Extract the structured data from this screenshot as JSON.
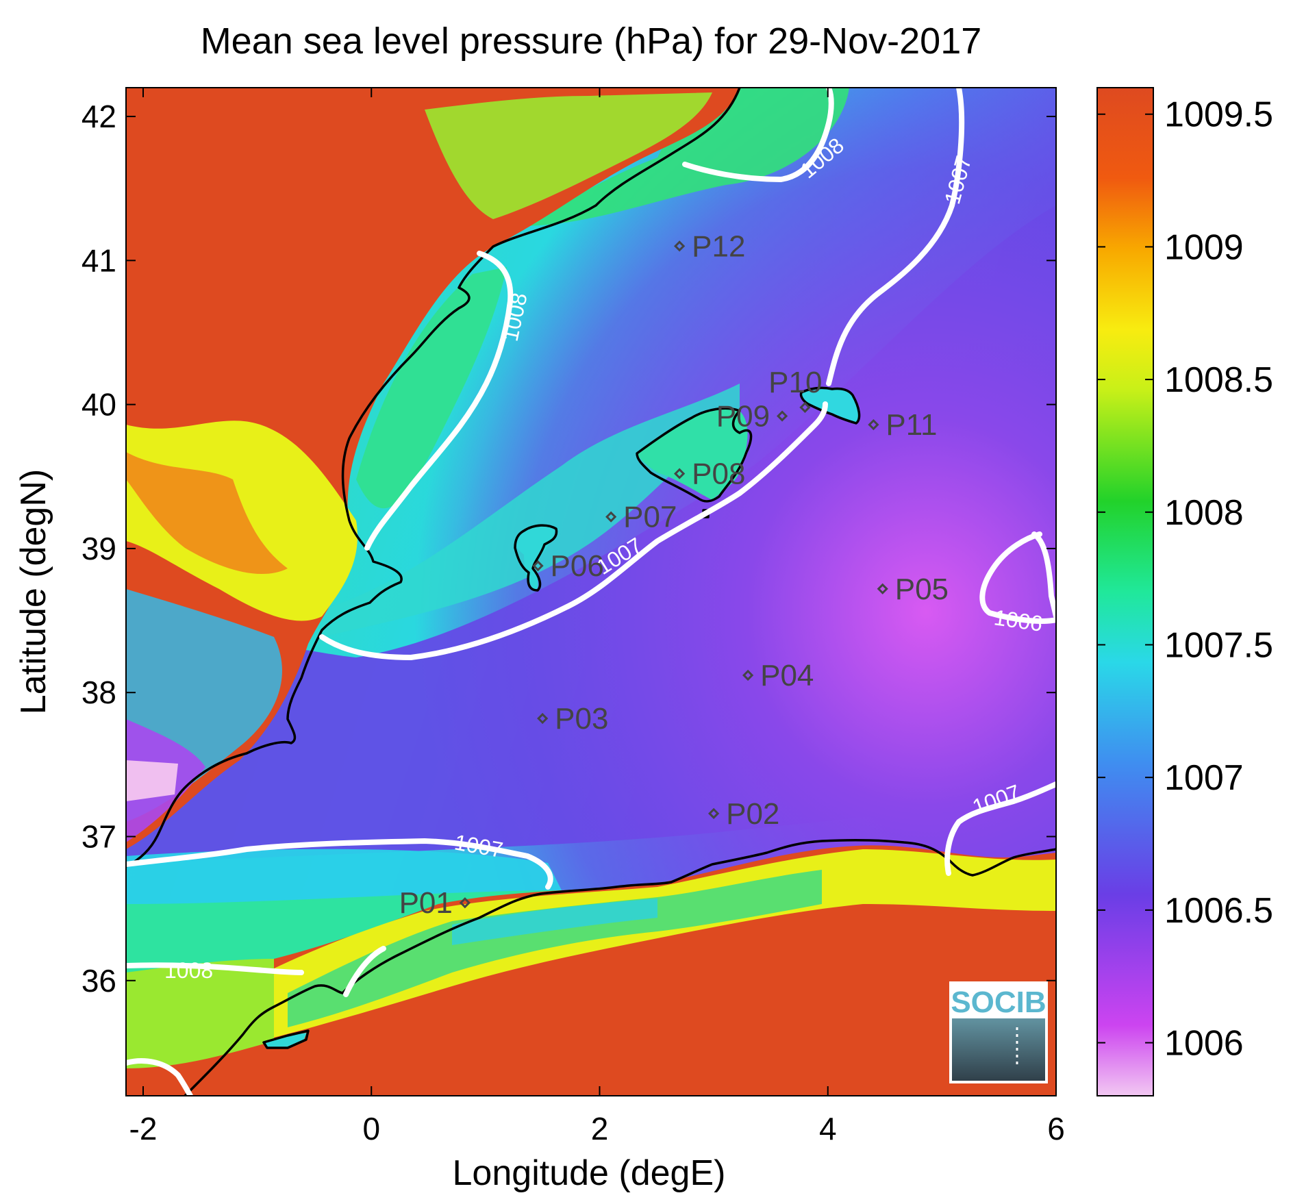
{
  "chart_data": {
    "type": "heatmap",
    "title": "Mean sea level pressure (hPa) for 29-Nov-2017",
    "xlabel": "Longitude (degE)",
    "ylabel": "Latitude (degN)",
    "xlim": [
      -2.15,
      6.0
    ],
    "ylim": [
      35.2,
      42.2
    ],
    "x_ticks": [
      -2,
      0,
      2,
      4,
      6
    ],
    "y_ticks": [
      36,
      37,
      38,
      39,
      40,
      41,
      42
    ],
    "x_tick_labels": [
      "-2",
      "0",
      "2",
      "4",
      "6"
    ],
    "y_tick_labels": [
      "36",
      "37",
      "38",
      "39",
      "40",
      "41",
      "42"
    ],
    "colorbar": {
      "min": 1005.8,
      "max": 1009.6,
      "ticks": [
        1006,
        1006.5,
        1007,
        1007.5,
        1008,
        1008.5,
        1009,
        1009.5
      ],
      "tick_labels": [
        "1006",
        "1006.5",
        "1007",
        "1007.5",
        "1008",
        "1008.5",
        "1009",
        "1009.5"
      ],
      "colors": [
        "#f2c8f2",
        "#cc44f0",
        "#6a3ee6",
        "#3f8ef0",
        "#2ad8e8",
        "#20e89a",
        "#22d22a",
        "#c8f018",
        "#f8ec10",
        "#f8a800",
        "#f05a10",
        "#de4a20"
      ]
    },
    "stations": [
      {
        "name": "P01",
        "lon": 0.82,
        "lat": 36.54
      },
      {
        "name": "P02",
        "lon": 3.0,
        "lat": 37.16
      },
      {
        "name": "P03",
        "lon": 1.5,
        "lat": 37.82
      },
      {
        "name": "P04",
        "lon": 3.3,
        "lat": 38.12
      },
      {
        "name": "P05",
        "lon": 4.48,
        "lat": 38.72
      },
      {
        "name": "P06",
        "lon": 1.46,
        "lat": 38.88
      },
      {
        "name": "P07",
        "lon": 2.1,
        "lat": 39.22
      },
      {
        "name": "P08",
        "lon": 2.7,
        "lat": 39.52
      },
      {
        "name": "P09",
        "lon": 3.6,
        "lat": 39.92
      },
      {
        "name": "P10",
        "lon": 3.8,
        "lat": 39.98
      },
      {
        "name": "P11",
        "lon": 4.4,
        "lat": 39.86
      },
      {
        "name": "P12",
        "lon": 2.7,
        "lat": 41.1
      }
    ],
    "contour_labels": [
      "1008",
      "1007",
      "1008",
      "1007",
      "1006",
      "1007",
      "1007",
      "1008"
    ]
  },
  "logo": {
    "text": "SOCIB"
  }
}
